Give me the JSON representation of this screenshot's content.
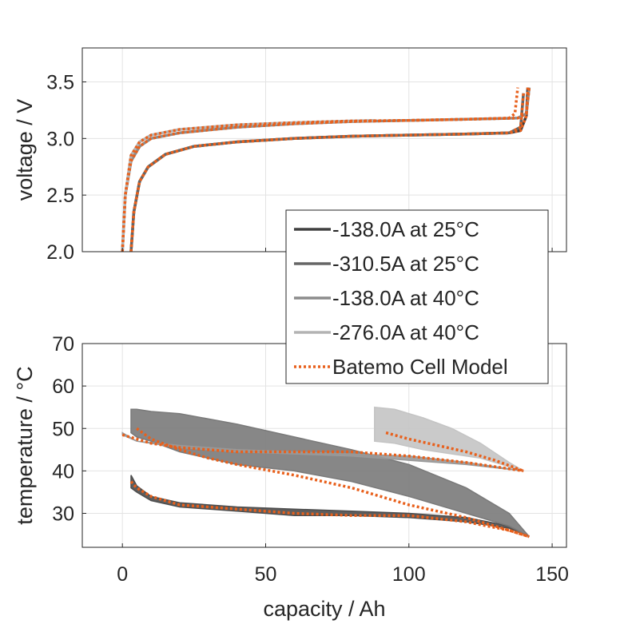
{
  "chart_data": [
    {
      "type": "line",
      "ylabel": "voltage / V",
      "xlabel": "",
      "xlim": [
        -14,
        155
      ],
      "ylim": [
        2.0,
        3.8
      ],
      "xticks": [
        0,
        50,
        100,
        150
      ],
      "yticks": [
        2.0,
        2.5,
        3.0,
        3.5
      ],
      "ytick_labels": [
        "2.0",
        "2.5",
        "3.0",
        "3.5"
      ],
      "grid": true,
      "series": [
        {
          "name": "-138.0A at 25°C",
          "color": "#404040",
          "x": [
            3,
            4,
            6,
            9,
            15,
            25,
            40,
            60,
            80,
            100,
            120,
            135,
            139,
            141,
            141.5
          ],
          "y": [
            2.0,
            2.35,
            2.62,
            2.75,
            2.86,
            2.93,
            2.97,
            3.0,
            3.02,
            3.03,
            3.04,
            3.05,
            3.07,
            3.2,
            3.45
          ]
        },
        {
          "name": "-310.5A at 25°C",
          "color": "#666666",
          "x": [
            3,
            4,
            6,
            9,
            15,
            25,
            40,
            60,
            80,
            100,
            120,
            135,
            139,
            140
          ],
          "y": [
            2.0,
            2.35,
            2.62,
            2.75,
            2.86,
            2.93,
            2.97,
            3.0,
            3.02,
            3.03,
            3.04,
            3.05,
            3.1,
            3.4
          ]
        },
        {
          "name": "-138.0A at 40°C",
          "color": "#8c8c8c",
          "x": [
            0,
            1,
            3,
            6,
            10,
            20,
            40,
            60,
            80,
            100,
            120,
            138,
            141,
            142
          ],
          "y": [
            2.0,
            2.5,
            2.8,
            2.93,
            3.0,
            3.05,
            3.1,
            3.13,
            3.15,
            3.16,
            3.17,
            3.18,
            3.22,
            3.45
          ]
        },
        {
          "name": "-276.0A at 40°C",
          "color": "#b3b3b3",
          "x": [
            0,
            1,
            3,
            6,
            10,
            20,
            40,
            60,
            80,
            88
          ],
          "y": [
            2.0,
            2.5,
            2.85,
            2.97,
            3.03,
            3.08,
            3.12,
            3.14,
            3.155,
            3.16
          ]
        }
      ],
      "model_series": [
        {
          "x": [
            3,
            4,
            6,
            9,
            15,
            25,
            40,
            60,
            80,
            100,
            120,
            135,
            139,
            141,
            141.5
          ],
          "y": [
            2.0,
            2.35,
            2.62,
            2.75,
            2.86,
            2.93,
            2.97,
            3.0,
            3.02,
            3.03,
            3.04,
            3.05,
            3.07,
            3.2,
            3.45
          ]
        },
        {
          "x": [
            3,
            4,
            6,
            9,
            15,
            25,
            40,
            60,
            80,
            100,
            120,
            135,
            139,
            140
          ],
          "y": [
            2.0,
            2.35,
            2.62,
            2.75,
            2.86,
            2.93,
            2.97,
            3.0,
            3.02,
            3.03,
            3.04,
            3.05,
            3.1,
            3.4
          ]
        },
        {
          "x": [
            0,
            1,
            3,
            6,
            10,
            20,
            40,
            60,
            80,
            100,
            120,
            138,
            141,
            142
          ],
          "y": [
            2.0,
            2.5,
            2.8,
            2.93,
            3.0,
            3.05,
            3.1,
            3.13,
            3.15,
            3.16,
            3.17,
            3.18,
            3.22,
            3.45
          ]
        },
        {
          "x": [
            0,
            1,
            3,
            6,
            10,
            20,
            40,
            60,
            80,
            100,
            120,
            135,
            137,
            138
          ],
          "y": [
            2.0,
            2.5,
            2.85,
            2.97,
            3.03,
            3.08,
            3.12,
            3.14,
            3.155,
            3.16,
            3.17,
            3.18,
            3.22,
            3.45
          ]
        }
      ]
    },
    {
      "type": "line",
      "ylabel": "temperature / °C",
      "xlabel": "capacity / Ah",
      "xlim": [
        -14,
        155
      ],
      "ylim": [
        22,
        70
      ],
      "xticks": [
        0,
        50,
        100,
        150
      ],
      "yticks": [
        30,
        40,
        50,
        60,
        70
      ],
      "grid": true,
      "bands": [
        {
          "name": "-138.0A at 25°C",
          "color": "#4d4d4d",
          "x": [
            3,
            5,
            10,
            20,
            40,
            60,
            80,
            100,
            120,
            135,
            142
          ],
          "upper": [
            39,
            36.5,
            34,
            32.5,
            31.5,
            31,
            30.5,
            30,
            29,
            27,
            24.5
          ],
          "lower": [
            36,
            35,
            33,
            31.5,
            30.5,
            29.5,
            29.5,
            29,
            28,
            26.5,
            24.5
          ]
        },
        {
          "name": "-310.5A at 25°C",
          "color": "#7a7a7a",
          "x": [
            3,
            5,
            10,
            20,
            40,
            60,
            80,
            100,
            120,
            135,
            142
          ],
          "upper": [
            54.5,
            54.5,
            54,
            53.5,
            51,
            48,
            45,
            41.5,
            36,
            30,
            24.5
          ],
          "lower": [
            49,
            48,
            47,
            44.5,
            41.5,
            40,
            37.5,
            34,
            30,
            27,
            24.5
          ]
        },
        {
          "name": "-138.0A at 40°C",
          "color": "#999999",
          "x": [
            0,
            5,
            20,
            40,
            60,
            80,
            100,
            120,
            140
          ],
          "upper": [
            49,
            47,
            46,
            45,
            44.5,
            44,
            43.5,
            42,
            40
          ],
          "lower": [
            48.5,
            47,
            45.5,
            44.5,
            44,
            43.5,
            42.5,
            41.5,
            40
          ]
        },
        {
          "name": "-276.0A at 40°C",
          "color": "#c4c4c4",
          "x": [
            88,
            95,
            105,
            115,
            125,
            135,
            140
          ],
          "upper": [
            55,
            54.5,
            52.5,
            50,
            46.5,
            42,
            40
          ],
          "lower": [
            47,
            46.5,
            45,
            44,
            43,
            41,
            40
          ]
        }
      ],
      "model_series": [
        {
          "x": [
            3,
            5,
            10,
            20,
            40,
            60,
            80,
            100,
            120,
            135,
            142
          ],
          "y": [
            37.5,
            36,
            34,
            32,
            31,
            30,
            29.5,
            29.5,
            28,
            26,
            24.5
          ]
        },
        {
          "x": [
            5,
            10,
            20,
            30,
            40,
            60,
            80,
            100,
            120,
            135,
            142
          ],
          "y": [
            50,
            47.5,
            45,
            43,
            41.5,
            39,
            36,
            32,
            29,
            26,
            24.5
          ]
        },
        {
          "x": [
            0,
            10,
            20,
            40,
            60,
            80,
            100,
            120,
            140
          ],
          "y": [
            48.5,
            46.5,
            45.5,
            44.5,
            44.5,
            44.5,
            43.5,
            42,
            40
          ]
        },
        {
          "x": [
            92,
            100,
            110,
            120,
            130,
            140
          ],
          "y": [
            49,
            47.5,
            46,
            44.5,
            42.5,
            40
          ]
        }
      ]
    }
  ],
  "legend": {
    "placement": "center-right",
    "entries": [
      {
        "label": "-138.0A at 25°C",
        "color": "#404040",
        "style": "solid"
      },
      {
        "label": "-310.5A at 25°C",
        "color": "#666666",
        "style": "solid"
      },
      {
        "label": "-138.0A at 40°C",
        "color": "#8c8c8c",
        "style": "solid"
      },
      {
        "label": "-276.0A at 40°C",
        "color": "#b3b3b3",
        "style": "solid"
      },
      {
        "label": "Batemo Cell Model",
        "color": "#e8601c",
        "style": "dotted"
      }
    ]
  },
  "model_color": "#e8601c"
}
